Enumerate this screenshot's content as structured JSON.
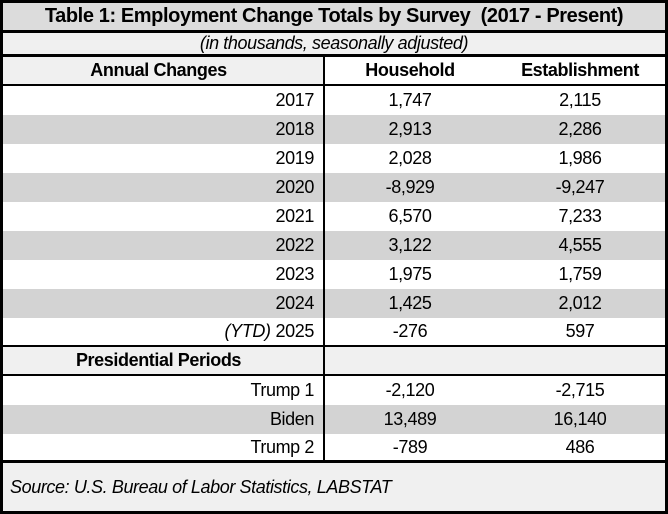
{
  "table": {
    "title": "Table 1: Employment Change Totals by Survey  (2017 - Present)",
    "subtitle": "(in thousands, seasonally adjusted)",
    "header": {
      "label_column": "Annual Changes",
      "household": "Household",
      "establishment": "Establishment"
    },
    "annual_rows": [
      {
        "label": "2017",
        "household": "1,747",
        "establishment": "2,115"
      },
      {
        "label": "2018",
        "household": "2,913",
        "establishment": "2,286"
      },
      {
        "label": "2019",
        "household": "2,028",
        "establishment": "1,986"
      },
      {
        "label": "2020",
        "household": "-8,929",
        "establishment": "-9,247"
      },
      {
        "label": "2021",
        "household": "6,570",
        "establishment": "7,233"
      },
      {
        "label": "2022",
        "household": "3,122",
        "establishment": "4,555"
      },
      {
        "label": "2023",
        "household": "1,975",
        "establishment": "1,759"
      },
      {
        "label": "2024",
        "household": "1,425",
        "establishment": "2,012"
      },
      {
        "prefix": "(YTD)",
        "label": "2025",
        "household": "-276",
        "establishment": "597"
      }
    ],
    "section_header": "Presidential Periods",
    "period_rows": [
      {
        "label": "Trump 1",
        "household": "-2,120",
        "establishment": "-2,715"
      },
      {
        "label": "Biden",
        "household": "13,489",
        "establishment": "16,140"
      },
      {
        "label": "Trump 2",
        "household": "-789",
        "establishment": "486"
      }
    ],
    "source": "Source: U.S. Bureau of Labor Statistics, LABSTAT"
  },
  "colors": {
    "border": "#000000",
    "title_bg": "#DCDCDC",
    "section_bg": "#F0F0F0",
    "row_alt_bg": "#D3D3D3",
    "row_bg": "#FFFFFF",
    "text": "#000000"
  },
  "chart_data": {
    "type": "table",
    "title": "Table 1: Employment Change Totals by Survey (2017 - Present)",
    "subtitle": "(in thousands, seasonally adjusted)",
    "columns": [
      "Annual Changes",
      "Household",
      "Establishment"
    ],
    "sections": [
      {
        "name": "Annual Changes",
        "rows": [
          {
            "label": "2017",
            "household": 1747,
            "establishment": 2115
          },
          {
            "label": "2018",
            "household": 2913,
            "establishment": 2286
          },
          {
            "label": "2019",
            "household": 2028,
            "establishment": 1986
          },
          {
            "label": "2020",
            "household": -8929,
            "establishment": -9247
          },
          {
            "label": "2021",
            "household": 6570,
            "establishment": 7233
          },
          {
            "label": "2022",
            "household": 3122,
            "establishment": 4555
          },
          {
            "label": "2023",
            "household": 1975,
            "establishment": 1759
          },
          {
            "label": "2024",
            "household": 1425,
            "establishment": 2012
          },
          {
            "label": "(YTD) 2025",
            "household": -276,
            "establishment": 597
          }
        ]
      },
      {
        "name": "Presidential Periods",
        "rows": [
          {
            "label": "Trump 1",
            "household": -2120,
            "establishment": -2715
          },
          {
            "label": "Biden",
            "household": 13489,
            "establishment": 16140
          },
          {
            "label": "Trump 2",
            "household": -789,
            "establishment": 486
          }
        ]
      }
    ],
    "source": "Source: U.S. Bureau of Labor Statistics, LABSTAT",
    "units": "thousands, seasonally adjusted"
  }
}
